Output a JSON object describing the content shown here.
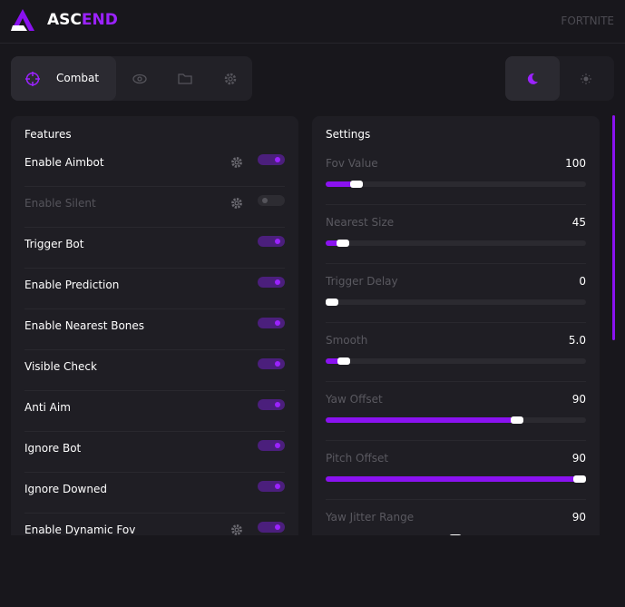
{
  "header": {
    "logo_prefix": "ASC",
    "logo_suffix": "END",
    "game": "FORTNITE"
  },
  "tabs": {
    "active": "Combat"
  },
  "features": {
    "title": "Features",
    "items": [
      {
        "label": "Enable Aimbot",
        "enabled": true,
        "settings": true,
        "disabled": false
      },
      {
        "label": "Enable Silent",
        "enabled": false,
        "settings": true,
        "disabled": true
      },
      {
        "label": "Trigger Bot",
        "enabled": true,
        "settings": false,
        "disabled": false
      },
      {
        "label": "Enable Prediction",
        "enabled": true,
        "settings": false,
        "disabled": false
      },
      {
        "label": "Enable Nearest Bones",
        "enabled": true,
        "settings": false,
        "disabled": false
      },
      {
        "label": "Visible Check",
        "enabled": true,
        "settings": false,
        "disabled": false
      },
      {
        "label": "Anti Aim",
        "enabled": true,
        "settings": false,
        "disabled": false
      },
      {
        "label": "Ignore Bot",
        "enabled": true,
        "settings": false,
        "disabled": false
      },
      {
        "label": "Ignore Downed",
        "enabled": true,
        "settings": false,
        "disabled": false
      },
      {
        "label": "Enable Dynamic Fov",
        "enabled": true,
        "settings": true,
        "disabled": false
      }
    ]
  },
  "settings": {
    "title": "Settings",
    "sliders": [
      {
        "label": "Fov Value",
        "value": "100"
      },
      {
        "label": "Nearest Size",
        "value": "45"
      },
      {
        "label": "Trigger Delay",
        "value": "0"
      },
      {
        "label": "Smooth",
        "value": "5.0"
      },
      {
        "label": "Yaw Offset",
        "value": "90"
      },
      {
        "label": "Pitch Offset",
        "value": "90"
      },
      {
        "label": "Yaw Jitter Range",
        "value": "90"
      }
    ]
  }
}
